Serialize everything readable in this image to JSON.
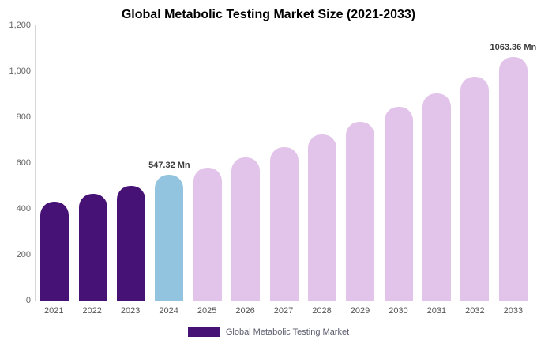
{
  "title": "Global Metabolic Testing Market Size (2021-2033)",
  "legend": {
    "label": "Global Metabolic Testing Market",
    "swatch_color": "#471275"
  },
  "colors": {
    "historical": "#471275",
    "current": "#93C4DF",
    "forecast": "#E2C3E9",
    "axis_line": "#d6d6d6"
  },
  "chart_data": {
    "type": "bar",
    "title": "Global Metabolic Testing Market Size (2021-2033)",
    "categories": [
      "2021",
      "2022",
      "2023",
      "2024",
      "2025",
      "2026",
      "2027",
      "2028",
      "2029",
      "2030",
      "2031",
      "2032",
      "2033"
    ],
    "values": [
      430,
      465,
      500,
      547.32,
      580,
      625,
      670,
      725,
      780,
      845,
      905,
      975,
      1063.36
    ],
    "unit": "Mn",
    "bar_colors": [
      "#471275",
      "#471275",
      "#471275",
      "#93C4DF",
      "#E2C3E9",
      "#E2C3E9",
      "#E2C3E9",
      "#E2C3E9",
      "#E2C3E9",
      "#E2C3E9",
      "#E2C3E9",
      "#E2C3E9",
      "#E2C3E9"
    ],
    "ylim": [
      0,
      1200
    ],
    "yticks": [
      {
        "value": 0,
        "label": "0"
      },
      {
        "value": 200,
        "label": "200"
      },
      {
        "value": 400,
        "label": "400"
      },
      {
        "value": 600,
        "label": "600"
      },
      {
        "value": 800,
        "label": "800"
      },
      {
        "value": 1000,
        "label": "1,000"
      },
      {
        "value": 1200,
        "label": "1,200"
      }
    ],
    "annotations": [
      {
        "index": 3,
        "label": "547.32 Mn"
      },
      {
        "index": 12,
        "label": "1063.36 Mn"
      }
    ],
    "grid": false,
    "legend_entries": [
      "Global Metabolic Testing Market"
    ],
    "legend_position": "bottom",
    "xlabel": "",
    "ylabel": ""
  }
}
